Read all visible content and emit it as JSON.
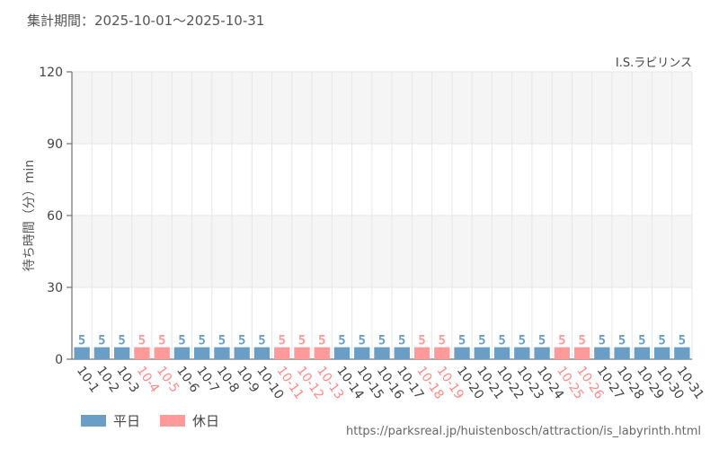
{
  "period": {
    "label": "集計期間：2025-10-01～2025-10-31"
  },
  "source_url": "https://parksreal.jp/huistenbosch/attraction/is_labyrinth.html",
  "colors": {
    "weekday": "#6a9ec5",
    "holiday": "#ff9a9a",
    "grid": "#e6e6e6",
    "band": "#f5f5f5"
  },
  "chart_data": {
    "type": "bar",
    "title": "I.S.ラビリンス",
    "ylabel": "待ち時間（分）min",
    "xlabel": "",
    "ylim": [
      0,
      120
    ],
    "yticks": [
      0,
      30,
      60,
      90,
      120
    ],
    "grid": true,
    "legend_position": "bottom-left",
    "categories": [
      "10-1",
      "10-2",
      "10-3",
      "10-4",
      "10-5",
      "10-6",
      "10-7",
      "10-8",
      "10-9",
      "10-10",
      "10-11",
      "10-12",
      "10-13",
      "10-14",
      "10-15",
      "10-16",
      "10-17",
      "10-18",
      "10-19",
      "10-20",
      "10-21",
      "10-22",
      "10-23",
      "10-24",
      "10-25",
      "10-26",
      "10-27",
      "10-28",
      "10-29",
      "10-30",
      "10-31"
    ],
    "values": [
      5,
      5,
      5,
      5,
      5,
      5,
      5,
      5,
      5,
      5,
      5,
      5,
      5,
      5,
      5,
      5,
      5,
      5,
      5,
      5,
      5,
      5,
      5,
      5,
      5,
      5,
      5,
      5,
      5,
      5,
      5
    ],
    "day_type": [
      "平日",
      "平日",
      "平日",
      "休日",
      "休日",
      "平日",
      "平日",
      "平日",
      "平日",
      "平日",
      "休日",
      "休日",
      "休日",
      "平日",
      "平日",
      "平日",
      "平日",
      "休日",
      "休日",
      "平日",
      "平日",
      "平日",
      "平日",
      "平日",
      "休日",
      "休日",
      "平日",
      "平日",
      "平日",
      "平日",
      "平日"
    ],
    "series": [
      {
        "name": "平日",
        "color": "#6a9ec5"
      },
      {
        "name": "休日",
        "color": "#ff9a9a"
      }
    ]
  }
}
